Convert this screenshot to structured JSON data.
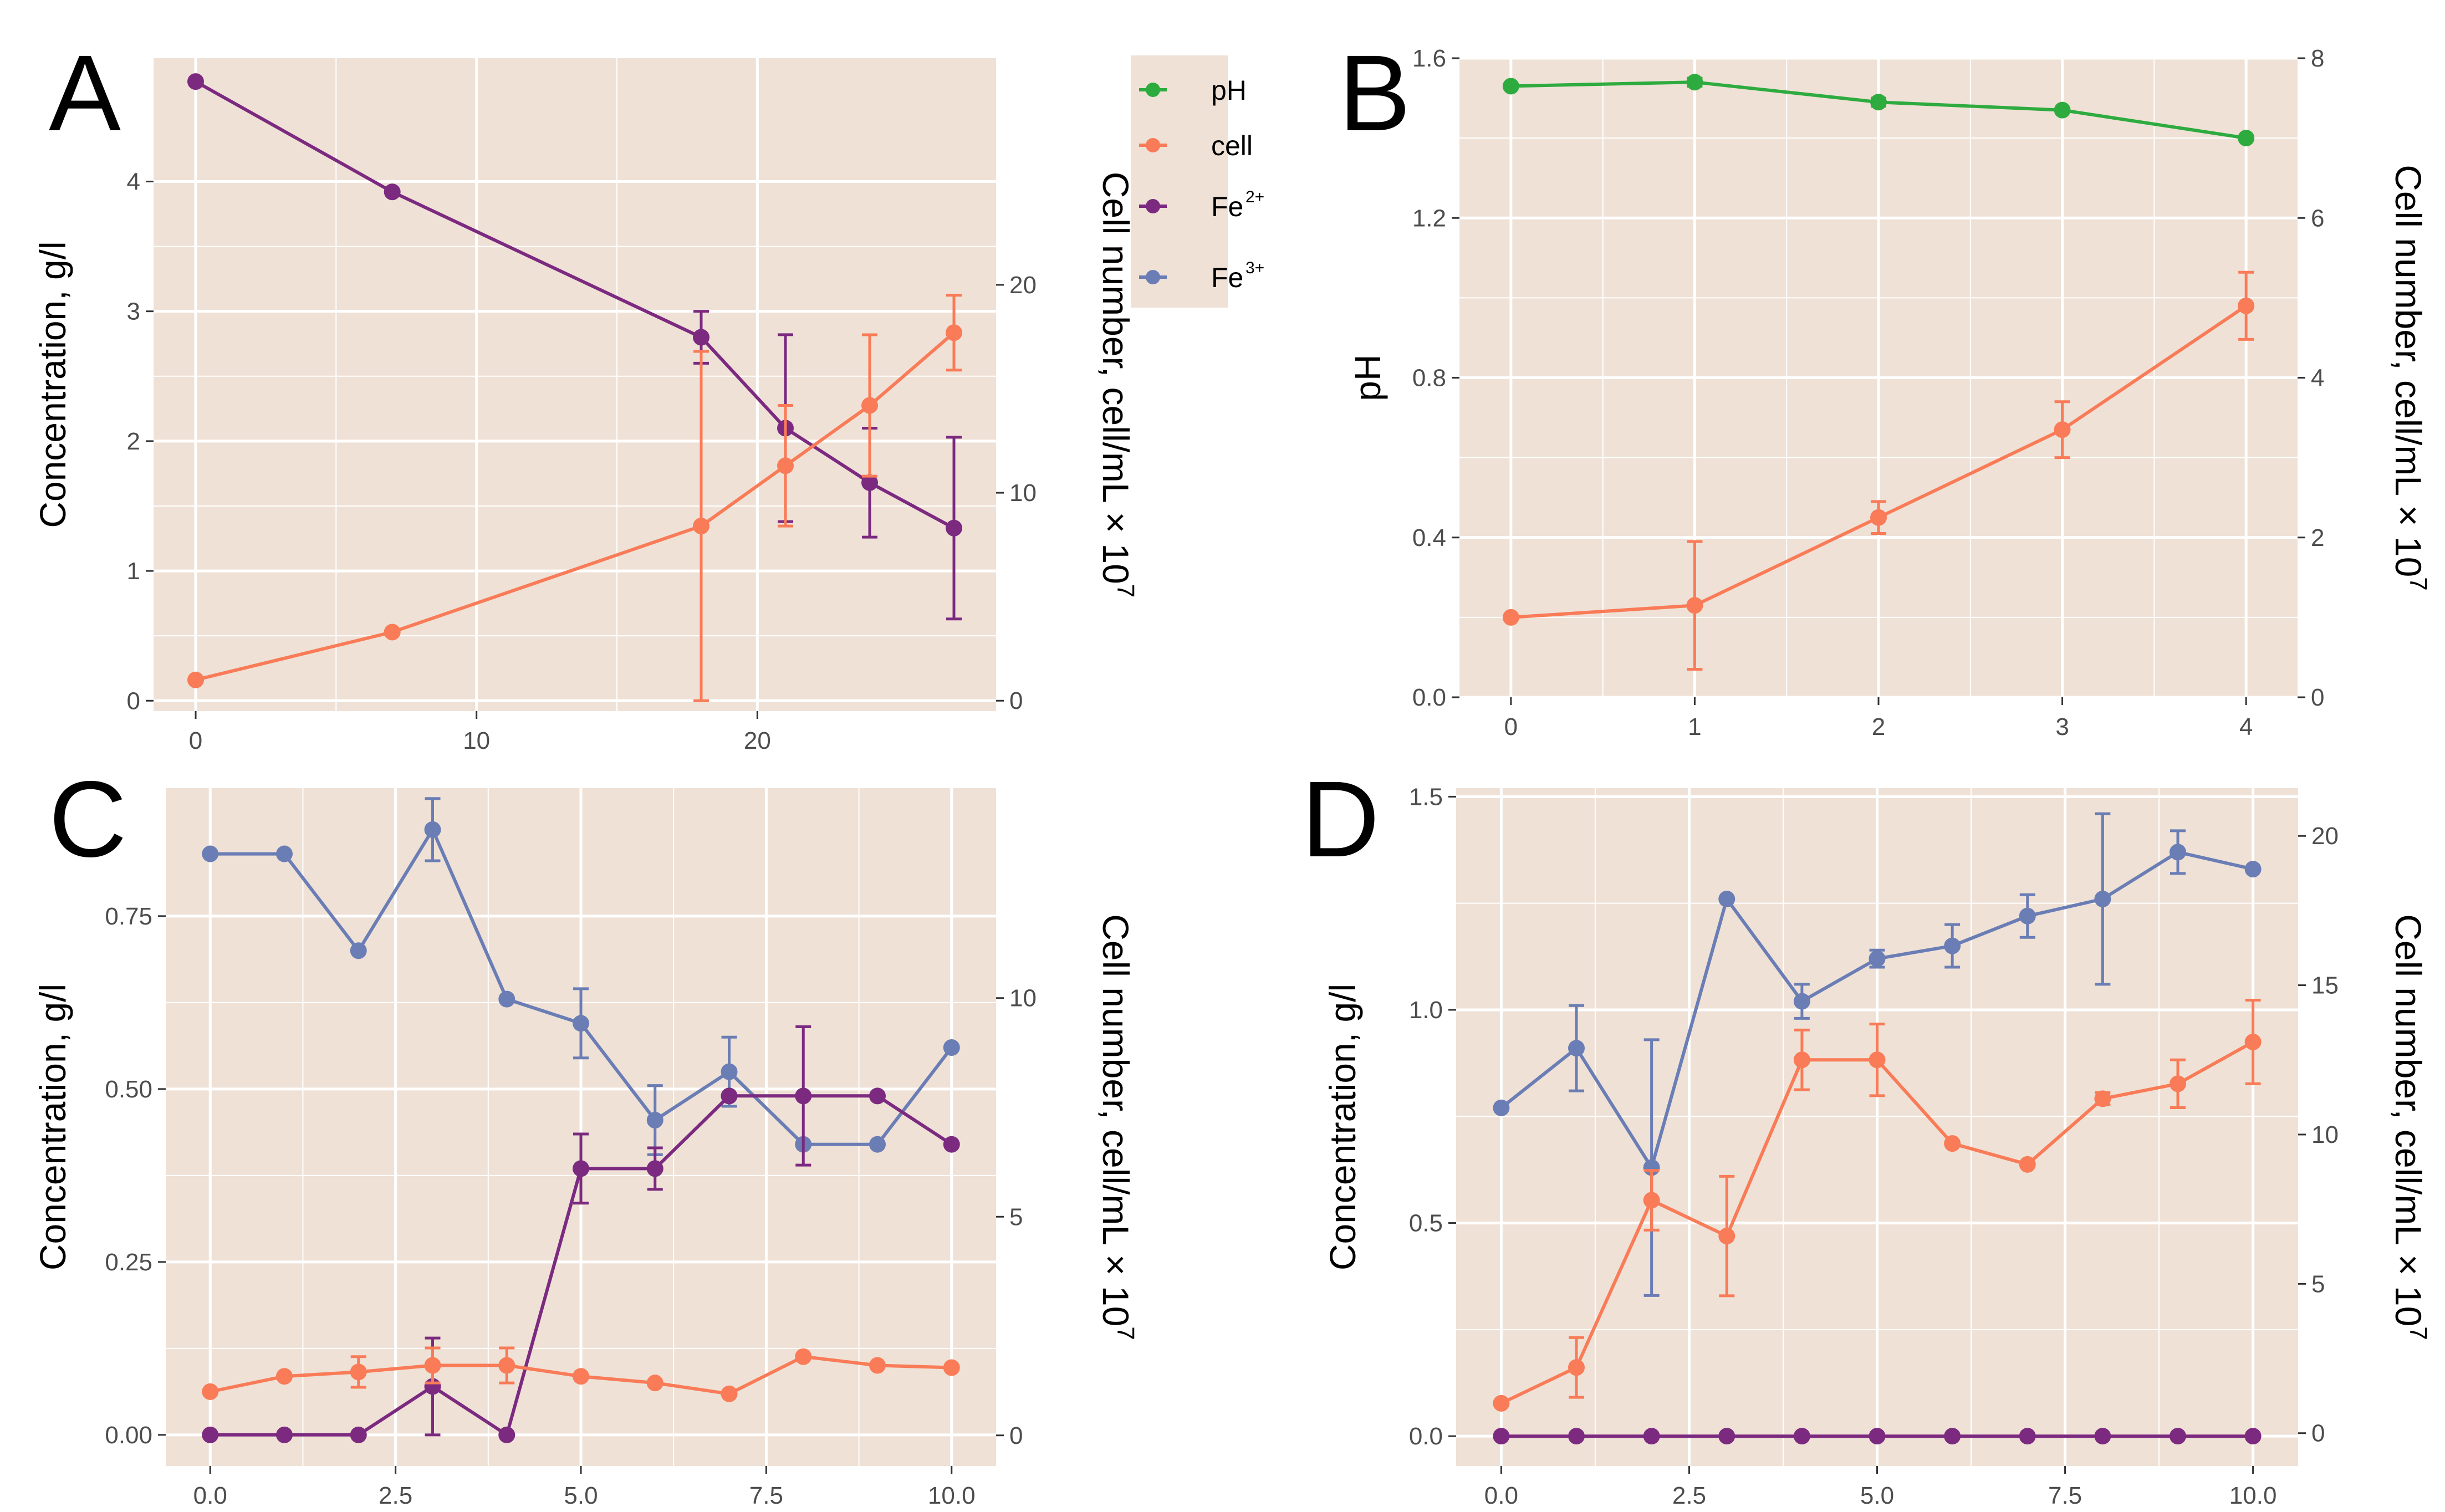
{
  "colors": {
    "background": "#ffffff",
    "panel": "#efe1d6",
    "grid": "#ffffff",
    "ph": "#2eab3f",
    "cell": "#f97b57",
    "fe2": "#7b2a80",
    "fe3": "#6a7db5"
  },
  "legend": {
    "items": [
      {
        "key": "ph",
        "label": "pH",
        "sup": ""
      },
      {
        "key": "cell",
        "label": "cell",
        "sup": ""
      },
      {
        "key": "fe2",
        "label": "Fe",
        "sup": "2+"
      },
      {
        "key": "fe3",
        "label": "Fe",
        "sup": "3+"
      }
    ]
  },
  "chart_data": [
    {
      "panel": "A",
      "type": "line",
      "x_ticks": [
        "0",
        "10",
        "20"
      ],
      "x_tick_values": [
        0,
        10,
        20
      ],
      "xlim": [
        -1.5,
        28.5
      ],
      "ylabel": "Concentration, g/l",
      "ylim": [
        -0.08,
        4.95
      ],
      "y_ticks": [
        "0",
        "1",
        "2",
        "3",
        "4"
      ],
      "y_tick_values": [
        0,
        1,
        2,
        3,
        4
      ],
      "y2label": "Cell number, cell/mL × 10",
      "y2label_sup": "7",
      "y2lim": [
        -0.5,
        30.9
      ],
      "y2_ticks": [
        "0",
        "10",
        "20"
      ],
      "y2_tick_values": [
        0,
        10,
        20
      ],
      "series": [
        {
          "name": "Fe2+",
          "key": "fe2",
          "axis": "left",
          "x": [
            0,
            7,
            18,
            21,
            24,
            27
          ],
          "y": [
            4.77,
            3.92,
            2.8,
            2.1,
            1.68,
            1.33
          ],
          "err": [
            0,
            0,
            0.2,
            0.72,
            0.42,
            0.7
          ]
        },
        {
          "name": "cell",
          "key": "cell",
          "axis": "right",
          "x": [
            0,
            7,
            18,
            21,
            24,
            27
          ],
          "y": [
            1.0,
            3.3,
            8.4,
            11.3,
            14.2,
            17.7
          ],
          "err": [
            0,
            0,
            8.4,
            2.9,
            3.4,
            1.8
          ]
        }
      ]
    },
    {
      "panel": "B",
      "type": "line",
      "x_ticks": [
        "0",
        "1",
        "2",
        "3",
        "4"
      ],
      "x_tick_values": [
        0,
        1,
        2,
        3,
        4
      ],
      "xlim": [
        -0.28,
        4.28
      ],
      "ylabel": "pH",
      "ylim": [
        0,
        1.6
      ],
      "y_ticks": [
        "0.0",
        "0.4",
        "0.8",
        "1.2",
        "1.6"
      ],
      "y_tick_values": [
        0,
        0.4,
        0.8,
        1.2,
        1.6
      ],
      "y2label": "Cell number, cell/mL × 10",
      "y2label_sup": "7",
      "y2lim": [
        0,
        8
      ],
      "y2_ticks": [
        "0",
        "2",
        "4",
        "6",
        "8"
      ],
      "y2_tick_values": [
        0,
        2,
        4,
        6,
        8
      ],
      "series": [
        {
          "name": "pH",
          "key": "ph",
          "axis": "left",
          "x": [
            0,
            1,
            2,
            3,
            4
          ],
          "y": [
            1.53,
            1.54,
            1.49,
            1.47,
            1.4
          ],
          "err": [
            0,
            0.01,
            0.01,
            0,
            0
          ]
        },
        {
          "name": "cell",
          "key": "cell",
          "axis": "right",
          "x": [
            0,
            1,
            2,
            3,
            4
          ],
          "y": [
            1.0,
            1.15,
            2.25,
            3.35,
            4.9
          ],
          "err": [
            0,
            0.8,
            0.2,
            0.35,
            0.42
          ]
        }
      ]
    },
    {
      "panel": "C",
      "type": "line",
      "x_ticks": [
        "0.0",
        "2.5",
        "5.0",
        "7.5",
        "10.0"
      ],
      "x_tick_values": [
        0,
        2.5,
        5,
        7.5,
        10
      ],
      "xlim": [
        -0.6,
        10.6
      ],
      "ylabel": "Concentration, g/l",
      "ylim": [
        -0.045,
        0.935
      ],
      "y_ticks": [
        "0.00",
        "0.25",
        "0.50",
        "0.75"
      ],
      "y_tick_values": [
        0,
        0.25,
        0.5,
        0.75
      ],
      "y2label": "Cell number, cell/mL × 10",
      "y2label_sup": "7",
      "y2lim": [
        -0.7,
        14.8
      ],
      "y2_ticks": [
        "0",
        "5",
        "10"
      ],
      "y2_tick_values": [
        0,
        5,
        10
      ],
      "series": [
        {
          "name": "Fe3+",
          "key": "fe3",
          "axis": "left",
          "x": [
            0,
            1,
            2,
            3,
            4,
            5,
            6,
            7,
            8,
            9,
            10
          ],
          "y": [
            0.84,
            0.84,
            0.7,
            0.875,
            0.63,
            0.595,
            0.455,
            0.525,
            0.42,
            0.42,
            0.56
          ],
          "err": [
            0,
            0,
            0,
            0.045,
            0,
            0.05,
            0.05,
            0.05,
            0,
            0,
            0
          ]
        },
        {
          "name": "Fe2+",
          "key": "fe2",
          "axis": "left",
          "x": [
            0,
            1,
            2,
            3,
            4,
            5,
            6,
            7,
            8,
            9,
            10
          ],
          "y": [
            0,
            0,
            0,
            0.07,
            0,
            0.385,
            0.385,
            0.49,
            0.49,
            0.49,
            0.42
          ],
          "err": [
            0,
            0,
            0,
            0.07,
            0,
            0.05,
            0.03,
            0,
            0.1,
            0,
            0
          ]
        },
        {
          "name": "cell",
          "key": "cell",
          "axis": "right",
          "x": [
            0,
            1,
            2,
            3,
            4,
            5,
            6,
            7,
            8,
            9,
            10
          ],
          "y": [
            1.0,
            1.35,
            1.45,
            1.6,
            1.6,
            1.35,
            1.2,
            0.95,
            1.8,
            1.6,
            1.55
          ],
          "err": [
            0,
            0,
            0.35,
            0.4,
            0.4,
            0,
            0,
            0,
            0,
            0,
            0
          ]
        }
      ]
    },
    {
      "panel": "D",
      "type": "line",
      "x_ticks": [
        "0.0",
        "2.5",
        "5.0",
        "7.5",
        "10.0"
      ],
      "x_tick_values": [
        0,
        2.5,
        5,
        7.5,
        10
      ],
      "xlim": [
        -0.6,
        10.6
      ],
      "ylabel": "Concentration, g/l",
      "ylim": [
        -0.07,
        1.52
      ],
      "y_ticks": [
        "0.0",
        "0.5",
        "1.0",
        "1.5"
      ],
      "y_tick_values": [
        0,
        0.5,
        1.0,
        1.5
      ],
      "y2label": "Cell number, cell/mL × 10",
      "y2label_sup": "7",
      "y2lim": [
        -1.1,
        21.6
      ],
      "y2_ticks": [
        "0",
        "5",
        "10",
        "15",
        "20"
      ],
      "y2_tick_values": [
        0,
        5,
        10,
        15,
        20
      ],
      "series": [
        {
          "name": "Fe3+",
          "key": "fe3",
          "axis": "left",
          "x": [
            0,
            1,
            2,
            3,
            4,
            5,
            6,
            7,
            8,
            9,
            10
          ],
          "y": [
            0.77,
            0.91,
            0.63,
            1.26,
            1.02,
            1.12,
            1.15,
            1.22,
            1.26,
            1.37,
            1.33
          ],
          "err": [
            0,
            0.1,
            0.3,
            0,
            0.04,
            0.02,
            0.05,
            0.05,
            0.2,
            0.05,
            0
          ]
        },
        {
          "name": "Fe2+",
          "key": "fe2",
          "axis": "left",
          "x": [
            0,
            1,
            2,
            3,
            4,
            5,
            6,
            7,
            8,
            9,
            10
          ],
          "y": [
            0,
            0,
            0,
            0,
            0,
            0,
            0,
            0,
            0,
            0,
            0
          ],
          "err": [
            0,
            0,
            0,
            0,
            0,
            0,
            0,
            0,
            0,
            0,
            0
          ]
        },
        {
          "name": "cell",
          "key": "cell",
          "axis": "right",
          "x": [
            0,
            1,
            2,
            3,
            4,
            5,
            6,
            7,
            8,
            9,
            10
          ],
          "y": [
            1.0,
            2.2,
            7.8,
            6.6,
            12.5,
            12.5,
            9.7,
            9.0,
            11.2,
            11.7,
            13.1
          ],
          "err": [
            0,
            1.0,
            1.0,
            2.0,
            1.0,
            1.2,
            0,
            0,
            0.2,
            0.8,
            1.4
          ]
        }
      ]
    }
  ]
}
